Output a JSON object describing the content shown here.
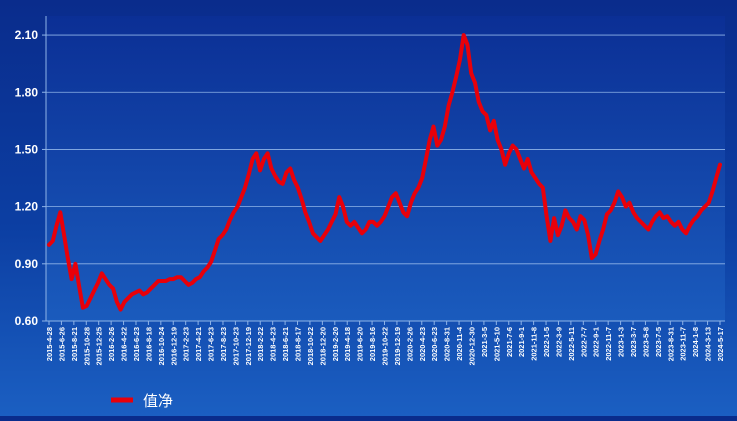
{
  "chart_data": {
    "type": "line",
    "title": "",
    "xlabel": "",
    "ylabel": "",
    "ylim": [
      0.6,
      2.2
    ],
    "yticks": [
      "0.60",
      "0.90",
      "1.20",
      "1.50",
      "1.80",
      "2.10"
    ],
    "x_tick_labels": [
      "2015-4-28",
      "2015-6-26",
      "2015-8-21",
      "2015-10-28",
      "2015-12-25",
      "2016-2-26",
      "2016-4-22",
      "2016-6-23",
      "2016-8-18",
      "2016-10-24",
      "2016-12-19",
      "2017-2-23",
      "2017-4-21",
      "2017-6-23",
      "2017-8-23",
      "2017-10-23",
      "2017-12-19",
      "2018-2-22",
      "2018-4-23",
      "2018-6-21",
      "2018-8-17",
      "2018-10-22",
      "2018-12-20",
      "2019-2-20",
      "2019-4-18",
      "2019-6-20",
      "2019-8-16",
      "2019-10-22",
      "2019-12-19",
      "2020-2-26",
      "2020-4-23",
      "2020-6-23",
      "2020-8-31",
      "2020-11-4",
      "2020-12-30",
      "2021-3-5",
      "2021-5-10",
      "2021-7-6",
      "2021-9-1",
      "2021-11-8",
      "2022-1-5",
      "2022-3-9",
      "2022-5-11",
      "2022-7-7",
      "2022-9-1",
      "2022-11-7",
      "2023-1-3",
      "2023-3-7",
      "2023-5-8",
      "2023-7-5",
      "2023-8-31",
      "2023-11-7",
      "2024-1-8",
      "2024-3-13",
      "2024-5-17"
    ],
    "grid": true,
    "legend": {
      "position": "bottom-left"
    },
    "colors": {
      "line": "#e8000a",
      "grid": "#8fb4e8",
      "text": "#ffffff"
    },
    "series": [
      {
        "name": "值净",
        "values": [
          1.0,
          1.02,
          1.1,
          1.17,
          1.05,
          0.93,
          0.82,
          0.9,
          0.78,
          0.67,
          0.68,
          0.72,
          0.76,
          0.8,
          0.85,
          0.82,
          0.79,
          0.77,
          0.7,
          0.66,
          0.7,
          0.72,
          0.74,
          0.75,
          0.76,
          0.74,
          0.75,
          0.77,
          0.79,
          0.81,
          0.81,
          0.81,
          0.82,
          0.82,
          0.83,
          0.83,
          0.81,
          0.79,
          0.8,
          0.82,
          0.83,
          0.86,
          0.88,
          0.91,
          0.97,
          1.03,
          1.05,
          1.08,
          1.13,
          1.17,
          1.2,
          1.25,
          1.3,
          1.37,
          1.45,
          1.48,
          1.39,
          1.45,
          1.48,
          1.4,
          1.36,
          1.33,
          1.32,
          1.38,
          1.4,
          1.34,
          1.3,
          1.24,
          1.17,
          1.12,
          1.06,
          1.04,
          1.02,
          1.05,
          1.08,
          1.12,
          1.16,
          1.25,
          1.2,
          1.12,
          1.1,
          1.12,
          1.09,
          1.06,
          1.08,
          1.12,
          1.12,
          1.1,
          1.12,
          1.15,
          1.2,
          1.25,
          1.27,
          1.22,
          1.17,
          1.15,
          1.22,
          1.27,
          1.3,
          1.35,
          1.45,
          1.55,
          1.62,
          1.52,
          1.55,
          1.62,
          1.73,
          1.8,
          1.88,
          1.97,
          2.1,
          2.05,
          1.9,
          1.85,
          1.75,
          1.7,
          1.68,
          1.6,
          1.65,
          1.55,
          1.5,
          1.42,
          1.48,
          1.52,
          1.5,
          1.45,
          1.4,
          1.45,
          1.38,
          1.35,
          1.32,
          1.3,
          1.15,
          1.02,
          1.14,
          1.05,
          1.1,
          1.18,
          1.14,
          1.12,
          1.08,
          1.15,
          1.13,
          1.05,
          0.93,
          0.95,
          1.02,
          1.08,
          1.16,
          1.18,
          1.22,
          1.28,
          1.25,
          1.2,
          1.22,
          1.17,
          1.14,
          1.12,
          1.1,
          1.08,
          1.12,
          1.15,
          1.17,
          1.14,
          1.15,
          1.12,
          1.1,
          1.12,
          1.08,
          1.06,
          1.1,
          1.13,
          1.15,
          1.18,
          1.2,
          1.22,
          1.28,
          1.35,
          1.42
        ]
      }
    ]
  }
}
